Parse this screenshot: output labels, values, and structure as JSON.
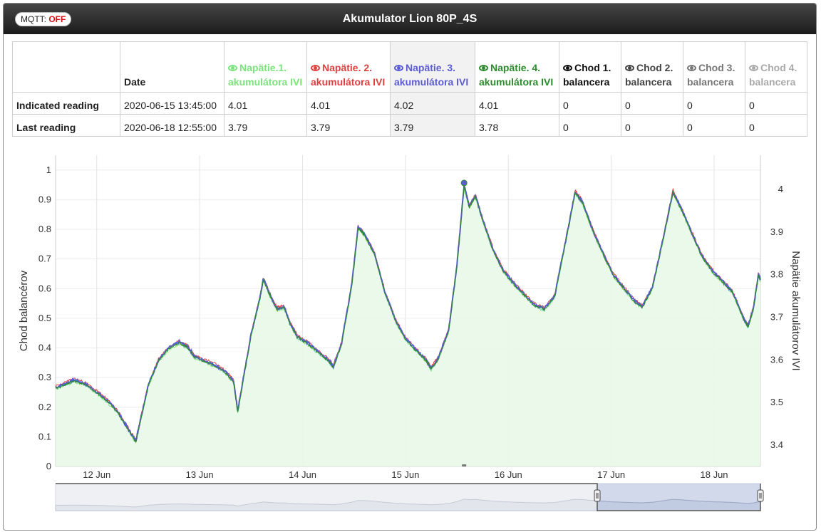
{
  "header": {
    "mqtt_label": "MQTT:",
    "mqtt_state": "OFF",
    "title": "Akumulator Lion 80P_4S"
  },
  "table": {
    "columns": [
      {
        "label": "",
        "color": "#222222"
      },
      {
        "label": "Date",
        "color": "#222222"
      },
      {
        "label": "Napätie.1. akumulátora IVI",
        "color": "#7be37b",
        "eye": true
      },
      {
        "label": "Napätie. 2. akumulátora IVI",
        "color": "#e03f3f",
        "eye": true
      },
      {
        "label": "Napätie. 3. akumulátora IVI",
        "color": "#5b5bd6",
        "eye": true
      },
      {
        "label": "Napätie. 4. akumulátora IVI",
        "color": "#2d8a2d",
        "eye": true
      },
      {
        "label": "Chod 1. balancera",
        "color": "#111111",
        "eye": true
      },
      {
        "label": "Chod 2. balancera",
        "color": "#444444",
        "eye": true
      },
      {
        "label": "Chod 3. balancera",
        "color": "#777777",
        "eye": true
      },
      {
        "label": "Chod 4. balancera",
        "color": "#aaaaaa",
        "eye": true
      }
    ],
    "rows": [
      {
        "label": "Indicated reading",
        "cells": [
          "2020-06-15 13:45:00",
          "4.01",
          "4.01",
          "4.02",
          "4.01",
          "0",
          "0",
          "0",
          "0"
        ]
      },
      {
        "label": "Last reading",
        "cells": [
          "2020-06-18 12:55:00",
          "3.79",
          "3.79",
          "3.79",
          "3.78",
          "0",
          "0",
          "0",
          "0"
        ]
      }
    ]
  },
  "chart_data": {
    "type": "line",
    "y_left": {
      "label": "Chod balancérov",
      "range": [
        0,
        1.05
      ],
      "ticks": [
        0,
        0.1,
        0.2,
        0.3,
        0.4,
        0.5,
        0.6,
        0.7,
        0.8,
        0.9,
        1
      ]
    },
    "y_right": {
      "label": "Napätie akumulátorov IVI",
      "range": [
        3.35,
        4.08
      ],
      "ticks": [
        3.4,
        3.5,
        3.6,
        3.7,
        3.8,
        3.9,
        4
      ]
    },
    "x_ticks": [
      "12 Jun",
      "13 Jun",
      "14 Jun",
      "15 Jun",
      "16 Jun",
      "17 Jun",
      "18 Jun"
    ],
    "x_range": [
      11.6,
      18.45
    ],
    "voltage_points": [
      [
        11.6,
        3.535
      ],
      [
        11.7,
        3.545
      ],
      [
        11.78,
        3.553
      ],
      [
        11.88,
        3.545
      ],
      [
        12.0,
        3.525
      ],
      [
        12.1,
        3.505
      ],
      [
        12.2,
        3.48
      ],
      [
        12.3,
        3.44
      ],
      [
        12.38,
        3.41
      ],
      [
        12.42,
        3.455
      ],
      [
        12.5,
        3.54
      ],
      [
        12.6,
        3.6
      ],
      [
        12.7,
        3.628
      ],
      [
        12.8,
        3.642
      ],
      [
        12.88,
        3.632
      ],
      [
        12.95,
        3.608
      ],
      [
        13.05,
        3.598
      ],
      [
        13.15,
        3.588
      ],
      [
        13.25,
        3.572
      ],
      [
        13.33,
        3.55
      ],
      [
        13.37,
        3.48
      ],
      [
        13.42,
        3.55
      ],
      [
        13.5,
        3.66
      ],
      [
        13.58,
        3.74
      ],
      [
        13.62,
        3.79
      ],
      [
        13.68,
        3.755
      ],
      [
        13.75,
        3.72
      ],
      [
        13.82,
        3.725
      ],
      [
        13.88,
        3.685
      ],
      [
        13.95,
        3.655
      ],
      [
        14.05,
        3.64
      ],
      [
        14.15,
        3.62
      ],
      [
        14.25,
        3.6
      ],
      [
        14.3,
        3.585
      ],
      [
        14.38,
        3.64
      ],
      [
        14.48,
        3.78
      ],
      [
        14.54,
        3.912
      ],
      [
        14.6,
        3.895
      ],
      [
        14.7,
        3.85
      ],
      [
        14.8,
        3.76
      ],
      [
        14.9,
        3.695
      ],
      [
        15.0,
        3.65
      ],
      [
        15.1,
        3.625
      ],
      [
        15.2,
        3.6
      ],
      [
        15.25,
        3.58
      ],
      [
        15.32,
        3.605
      ],
      [
        15.42,
        3.67
      ],
      [
        15.5,
        3.82
      ],
      [
        15.57,
        4.01
      ],
      [
        15.62,
        3.96
      ],
      [
        15.68,
        3.985
      ],
      [
        15.75,
        3.93
      ],
      [
        15.85,
        3.86
      ],
      [
        15.95,
        3.81
      ],
      [
        16.05,
        3.78
      ],
      [
        16.15,
        3.755
      ],
      [
        16.25,
        3.73
      ],
      [
        16.35,
        3.72
      ],
      [
        16.45,
        3.75
      ],
      [
        16.55,
        3.87
      ],
      [
        16.65,
        3.995
      ],
      [
        16.72,
        3.97
      ],
      [
        16.82,
        3.905
      ],
      [
        16.92,
        3.85
      ],
      [
        17.02,
        3.8
      ],
      [
        17.12,
        3.77
      ],
      [
        17.22,
        3.74
      ],
      [
        17.3,
        3.725
      ],
      [
        17.4,
        3.77
      ],
      [
        17.5,
        3.88
      ],
      [
        17.6,
        3.995
      ],
      [
        17.68,
        3.955
      ],
      [
        17.78,
        3.9
      ],
      [
        17.88,
        3.845
      ],
      [
        17.98,
        3.81
      ],
      [
        18.08,
        3.785
      ],
      [
        18.18,
        3.76
      ],
      [
        18.28,
        3.7
      ],
      [
        18.33,
        3.68
      ],
      [
        18.38,
        3.72
      ],
      [
        18.43,
        3.8
      ],
      [
        18.45,
        3.79
      ]
    ],
    "series": [
      {
        "name": "Napätie.1. akumulátora IVI",
        "color": "#7be37b"
      },
      {
        "name": "Napätie. 2. akumulátora IVI",
        "color": "#e03f3f"
      },
      {
        "name": "Napätie. 3. akumulátora IVI",
        "color": "#5b5bd6"
      },
      {
        "name": "Napätie. 4. akumulátora IVI",
        "color": "#2d8a2d"
      }
    ],
    "grid": true
  }
}
